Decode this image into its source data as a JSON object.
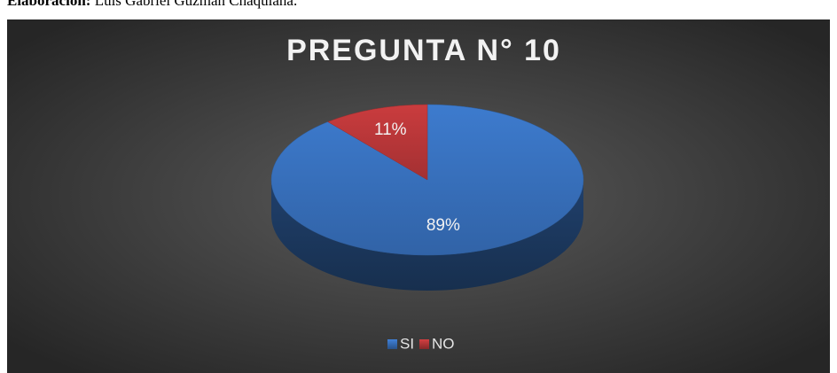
{
  "caption": {
    "label": "Elaboración:",
    "text": "Luis Gabriel Guzmán Chaquiana."
  },
  "chart_data": {
    "type": "pie",
    "title": "PREGUNTA N° 10",
    "categories": [
      "SI",
      "NO"
    ],
    "values": [
      89,
      11
    ],
    "value_labels": [
      "89%",
      "11%"
    ],
    "colors": [
      "#3a75c4",
      "#c0393b"
    ],
    "legend": "bottom"
  }
}
